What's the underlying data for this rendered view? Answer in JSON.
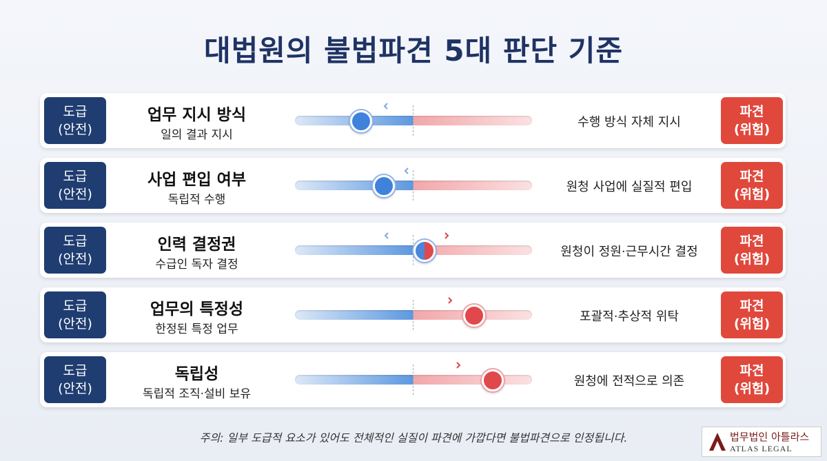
{
  "title": "대법원의 불법파견 5대 판단 기준",
  "rows": [
    {
      "left_badge": [
        "도급",
        "(안전)"
      ],
      "criterion": "업무 지시 방식",
      "safe_case": "일의 결과 지시",
      "risk_case": "수행 방식 자체 지시",
      "right_badge": [
        "파견",
        "(위험)"
      ]
    },
    {
      "left_badge": [
        "도급",
        "(안전)"
      ],
      "criterion": "사업 편입 여부",
      "safe_case": "독립적 수행",
      "risk_case": "원청 사업에 실질적 편입",
      "right_badge": [
        "파견",
        "(위험)"
      ]
    },
    {
      "left_badge": [
        "도급",
        "(안전)"
      ],
      "criterion": "인력 결정권",
      "safe_case": "수급인 독자 결정",
      "risk_case": "원청이 정원·근무시간 결정",
      "right_badge": [
        "파견",
        "(위험)"
      ]
    },
    {
      "left_badge": [
        "도급",
        "(안전)"
      ],
      "criterion": "업무의 특정성",
      "safe_case": "한정된 특정 업무",
      "risk_case": "포괄적·추상적 위탁",
      "right_badge": [
        "파견",
        "(위험)"
      ]
    },
    {
      "left_badge": [
        "도급",
        "(안전)"
      ],
      "criterion": "독립성",
      "safe_case": "독립적 조직·설비 보유",
      "risk_case": "원청에 전적으로 의존",
      "right_badge": [
        "파견",
        "(위험)"
      ]
    }
  ],
  "footnote": "주의: 일부 도급적 요소가 있어도 전체적인 실질이 파견에 가깝다면 불법파견으로 인정됩니다.",
  "logo": {
    "name": "법무법인 아틀라스",
    "english": "ATLAS LEGAL"
  }
}
